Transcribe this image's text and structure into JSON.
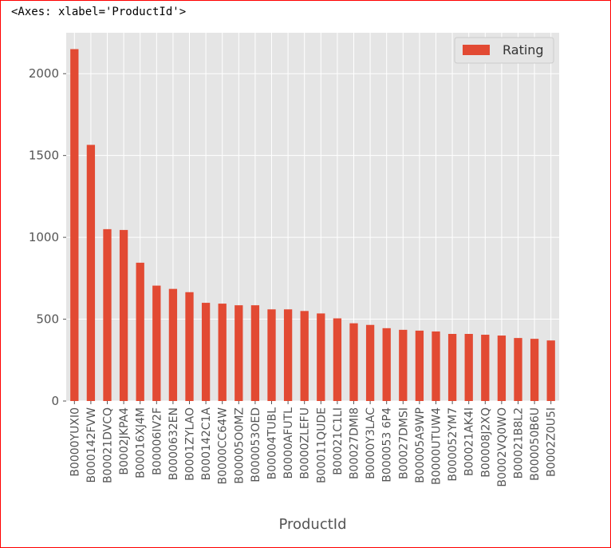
{
  "output": {
    "repr_text": "<Axes: xlabel='ProductId'>"
  },
  "chart_data": {
    "type": "bar",
    "title": "",
    "xlabel": "ProductId",
    "ylabel": "",
    "ylim": [
      0,
      2250
    ],
    "yticks": [
      0,
      500,
      1000,
      1500,
      2000
    ],
    "grid": true,
    "legend": "top-right",
    "categories": [
      "B0000YUXI0",
      "B000142FVW",
      "B00021DVCQ",
      "B0002JKPA4",
      "B00016XJ4M",
      "B00006IV2F",
      "B0000632EN",
      "B0001ZYLAO",
      "B000142C1A",
      "B0000CC64W",
      "B00005O0MZ",
      "B000053OED",
      "B00004TUBL",
      "B0000AFUTL",
      "B0000ZLEFU",
      "B00011QUDE",
      "B00021C1LI",
      "B00027DMI8",
      "B0000Y3LAC",
      "B000053 6P4",
      "B00027DMSI",
      "B00005A9WP",
      "B0000UTUW4",
      "B000052YM7",
      "B00021AK4I",
      "B00008J2XQ",
      "B0002VQ0WO",
      "B00021B8L2",
      "B000050B6U",
      "B0002Z0U5I"
    ],
    "series": [
      {
        "name": "Rating",
        "color": "#e24a33",
        "values": [
          2150,
          1565,
          1050,
          1045,
          845,
          705,
          685,
          665,
          600,
          595,
          585,
          585,
          560,
          560,
          550,
          535,
          505,
          475,
          465,
          445,
          435,
          430,
          425,
          410,
          410,
          405,
          400,
          385,
          380,
          370
        ]
      }
    ]
  },
  "style": {
    "plot_bg": "#e5e5e5",
    "grid_color": "#ffffff",
    "tick_color": "#555555",
    "label_color": "#555555"
  }
}
